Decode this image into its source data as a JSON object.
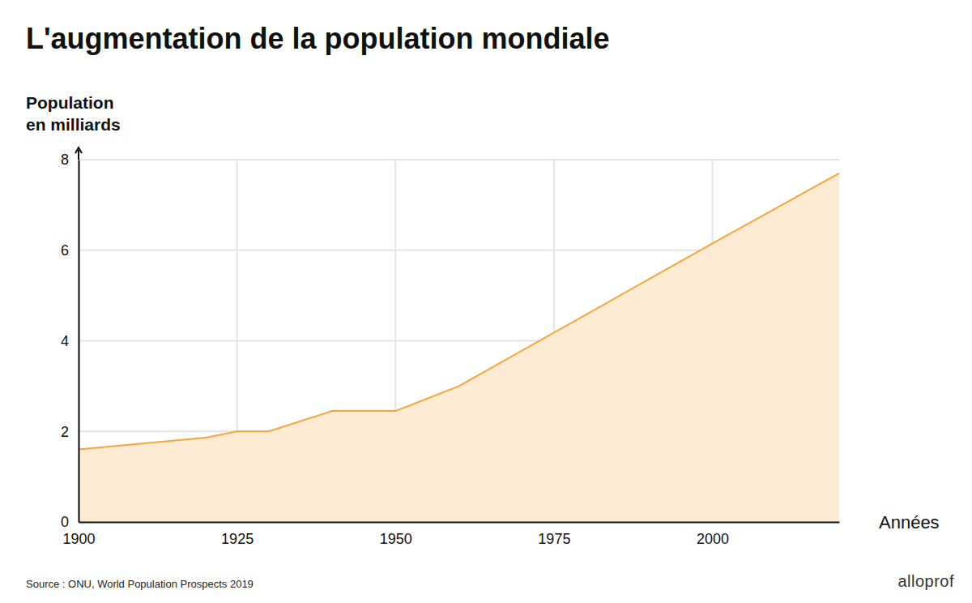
{
  "chart_data": {
    "type": "area",
    "title": "L'augmentation de la population mondiale",
    "ylabel": [
      "Population",
      "en milliards"
    ],
    "xlabel": "Années",
    "source": "Source : ONU, World Population Prospects 2019",
    "logo": "alloprof",
    "x": [
      1900,
      1920,
      1925,
      1930,
      1940,
      1950,
      1960,
      2000,
      2020
    ],
    "values": [
      1.6,
      1.86,
      2.0,
      2.0,
      2.45,
      2.45,
      3.0,
      6.15,
      7.7
    ],
    "color": "#f5a53c",
    "xlim": [
      1900,
      2020
    ],
    "xticks": [
      1900,
      1925,
      1950,
      1975,
      2000
    ],
    "ylim": [
      0,
      8
    ],
    "yticks": [
      0,
      2,
      4,
      6,
      8
    ],
    "grid": true
  }
}
